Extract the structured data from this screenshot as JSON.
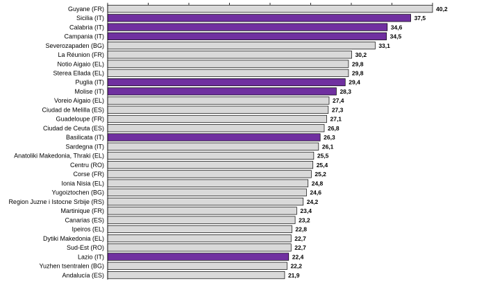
{
  "chart_data": {
    "type": "bar",
    "orientation": "horizontal",
    "title": "",
    "xlabel": "",
    "ylabel": "",
    "xlim": [
      0,
      40.2
    ],
    "grid": false,
    "legend": "none",
    "colors": {
      "italy": "#7030A0",
      "other": "#D9D9D9",
      "outline": "#000000"
    },
    "categories": [
      "Guyane (FR)",
      "Sicilia (IT)",
      "Calabria (IT)",
      "Campania (IT)",
      "Severozapaden (BG)",
      "La Réunion (FR)",
      "Notio Aigaio (EL)",
      "Sterea Ellada (EL)",
      "Puglia (IT)",
      "Molise (IT)",
      "Voreio Aigaio (EL)",
      "Ciudad de Melilla (ES)",
      "Guadeloupe (FR)",
      "Ciudad de Ceuta (ES)",
      "Basilicata (IT)",
      "Sardegna (IT)",
      "Anatoliki Makedonia, Thraki (EL)",
      "Centru (RO)",
      "Corse (FR)",
      "Ionia Nisia (EL)",
      "Yugoiztochen (BG)",
      "Region Juzne i Istocne Srbije (RS)",
      "Martinique (FR)",
      "Canarias (ES)",
      "Ipeiros (EL)",
      "Dytiki Makedonia (EL)",
      "Sud-Est (RO)",
      "Lazio (IT)",
      "Yuzhen tsentralen (BG)",
      "Andalucía (ES)"
    ],
    "values": [
      40.2,
      37.5,
      34.6,
      34.5,
      33.1,
      30.2,
      29.8,
      29.8,
      29.4,
      28.3,
      27.4,
      27.3,
      27.1,
      26.8,
      26.3,
      26.1,
      25.5,
      25.4,
      25.2,
      24.8,
      24.6,
      24.2,
      23.4,
      23.2,
      22.8,
      22.7,
      22.7,
      22.4,
      22.2,
      21.9
    ],
    "value_labels": [
      "40,2",
      "37,5",
      "34,6",
      "34,5",
      "33,1",
      "30,2",
      "29,8",
      "29,8",
      "29,4",
      "28,3",
      "27,4",
      "27,3",
      "27,1",
      "26,8",
      "26,3",
      "26,1",
      "25,5",
      "25,4",
      "25,2",
      "24,8",
      "24,6",
      "24,2",
      "23,4",
      "23,2",
      "22,8",
      "22,7",
      "22,7",
      "22,4",
      "22,2",
      "21,9"
    ],
    "highlight": [
      false,
      true,
      true,
      true,
      false,
      false,
      false,
      false,
      true,
      true,
      false,
      false,
      false,
      false,
      true,
      false,
      false,
      false,
      false,
      false,
      false,
      false,
      false,
      false,
      false,
      false,
      false,
      true,
      false,
      false
    ]
  }
}
